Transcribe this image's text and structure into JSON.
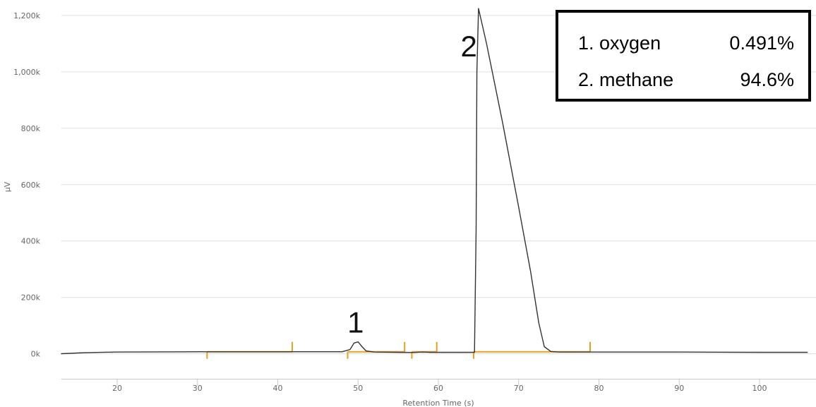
{
  "chart_data": {
    "type": "line",
    "xlabel": "Retention Time (s)",
    "ylabel": "µV",
    "xlim": [
      13,
      106
    ],
    "ylim": [
      -60000,
      1230000
    ],
    "x_ticks": [
      20,
      30,
      40,
      50,
      60,
      70,
      80,
      90,
      100
    ],
    "y_ticks": [
      {
        "value": 0,
        "label": "0k"
      },
      {
        "value": 200000,
        "label": "200k"
      },
      {
        "value": 400000,
        "label": "400k"
      },
      {
        "value": 600000,
        "label": "600k"
      },
      {
        "value": 800000,
        "label": "800k"
      },
      {
        "value": 1000000,
        "label": "1,000k"
      },
      {
        "value": 1200000,
        "label": "1,200k"
      }
    ],
    "grid": true,
    "colors": {
      "signal": "#333333",
      "integration": "#e8a020",
      "grid": "#e0e0e0"
    },
    "series": [
      {
        "x": [
          13,
          16,
          20,
          30,
          40,
          48,
          49,
          49.5,
          50,
          50.5,
          51,
          52,
          55,
          57,
          58,
          59,
          60,
          63,
          64.5,
          64.7,
          64.8,
          65,
          66,
          68,
          70,
          71.5,
          72.5,
          73.2,
          74,
          75,
          80,
          90,
          100,
          106
        ],
        "values": [
          0,
          4000,
          6000,
          7000,
          7000,
          7000,
          15000,
          38000,
          42000,
          25000,
          10000,
          6000,
          5000,
          4500,
          6000,
          5000,
          5000,
          5000,
          5000,
          440000,
          1000000,
          1225000,
          1100000,
          820000,
          520000,
          290000,
          110000,
          25000,
          8000,
          6000,
          6000,
          6000,
          5000,
          5000
        ]
      }
    ],
    "integration_segments": [
      [
        31.2,
        41.8
      ],
      [
        48.7,
        55.8
      ],
      [
        56.7,
        59.8
      ],
      [
        64.4,
        78.9
      ]
    ],
    "annotations": [
      {
        "label": "1",
        "x": 49.7,
        "y": 110000
      },
      {
        "label": "2",
        "x": 63.8,
        "y": 1090000
      }
    ],
    "peak_table": [
      {
        "name": "1. oxygen",
        "value": "0.491%"
      },
      {
        "name": "2. methane",
        "value": "94.6%"
      }
    ]
  }
}
